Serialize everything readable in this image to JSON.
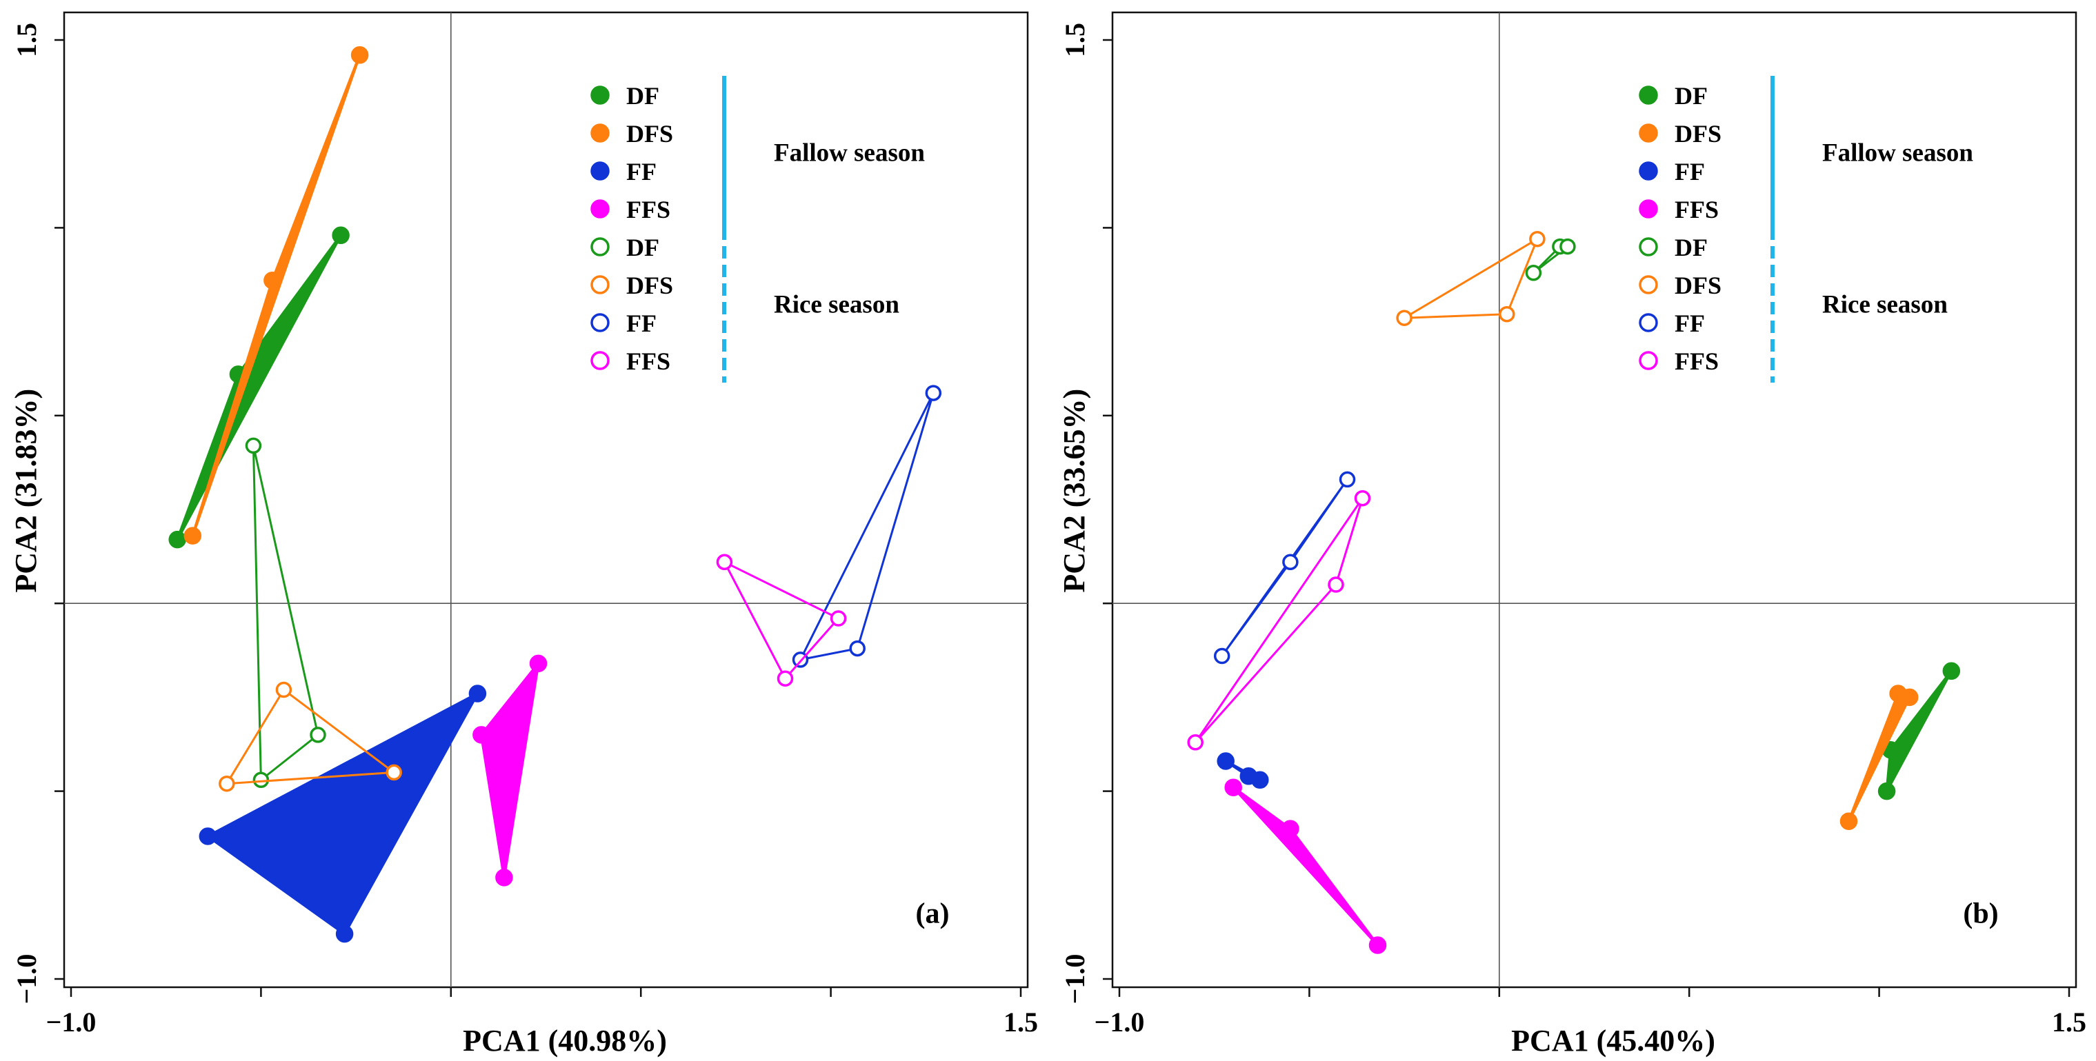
{
  "chart_data": [
    {
      "type": "scatter",
      "panel_label": "(a)",
      "xlabel": "PCA1 (40.98%)",
      "ylabel": "PCA2 (31.83%)",
      "xlim": [
        -1.0,
        1.5
      ],
      "ylim": [
        -1.0,
        1.5
      ],
      "x_tick_labels": [
        "-1.0",
        "1.5"
      ],
      "y_tick_labels": [
        "1.5",
        "-1.0"
      ],
      "reference_lines": {
        "x": 0,
        "y": 0
      },
      "legend": {
        "position": "top-right",
        "fallow_label": "Fallow season",
        "rice_label": "Rice season",
        "entries": [
          {
            "name": "DF",
            "season": "fallow",
            "color": "#1a9a1a"
          },
          {
            "name": "DFS",
            "season": "fallow",
            "color": "#ff7f0e"
          },
          {
            "name": "FF",
            "season": "fallow",
            "color": "#1034d6"
          },
          {
            "name": "FFS",
            "season": "fallow",
            "color": "#ff00ff"
          },
          {
            "name": "DF",
            "season": "rice",
            "color": "#1a9a1a"
          },
          {
            "name": "DFS",
            "season": "rice",
            "color": "#ff7f0e"
          },
          {
            "name": "FF",
            "season": "rice",
            "color": "#1034d6"
          },
          {
            "name": "FFS",
            "season": "rice",
            "color": "#ff00ff"
          }
        ]
      },
      "series": [
        {
          "name": "DF",
          "season": "fallow",
          "color": "#1a9a1a",
          "points": [
            [
              -0.72,
              0.17
            ],
            [
              -0.56,
              0.61
            ],
            [
              -0.29,
              0.98
            ]
          ]
        },
        {
          "name": "DFS",
          "season": "fallow",
          "color": "#ff7f0e",
          "points": [
            [
              -0.68,
              0.18
            ],
            [
              -0.47,
              0.86
            ],
            [
              -0.24,
              1.46
            ]
          ]
        },
        {
          "name": "FF",
          "season": "fallow",
          "color": "#1034d6",
          "points": [
            [
              -0.64,
              -0.62
            ],
            [
              -0.28,
              -0.88
            ],
            [
              0.07,
              -0.24
            ]
          ]
        },
        {
          "name": "FFS",
          "season": "fallow",
          "color": "#ff00ff",
          "points": [
            [
              0.08,
              -0.35
            ],
            [
              0.14,
              -0.73
            ],
            [
              0.23,
              -0.16
            ]
          ]
        },
        {
          "name": "DF",
          "season": "rice",
          "color": "#1a9a1a",
          "points": [
            [
              -0.52,
              0.42
            ],
            [
              -0.5,
              -0.47
            ],
            [
              -0.35,
              -0.35
            ]
          ]
        },
        {
          "name": "DFS",
          "season": "rice",
          "color": "#ff7f0e",
          "points": [
            [
              -0.59,
              -0.48
            ],
            [
              -0.44,
              -0.23
            ],
            [
              -0.15,
              -0.45
            ]
          ]
        },
        {
          "name": "FF",
          "season": "rice",
          "color": "#1034d6",
          "points": [
            [
              0.92,
              -0.15
            ],
            [
              1.07,
              -0.12
            ],
            [
              1.27,
              0.56
            ]
          ]
        },
        {
          "name": "FFS",
          "season": "rice",
          "color": "#ff00ff",
          "points": [
            [
              0.72,
              0.11
            ],
            [
              0.88,
              -0.2
            ],
            [
              1.02,
              -0.04
            ]
          ]
        }
      ]
    },
    {
      "type": "scatter",
      "panel_label": "(b)",
      "xlabel": "PCA1 (45.40%)",
      "ylabel": "PCA2 (33.65%)",
      "xlim": [
        -1.0,
        1.5
      ],
      "ylim": [
        -1.0,
        1.5
      ],
      "x_tick_labels": [
        "-1.0",
        "1.5"
      ],
      "y_tick_labels": [
        "1.5",
        "-1.0"
      ],
      "reference_lines": {
        "x": 0,
        "y": 0
      },
      "legend": {
        "position": "top-right",
        "fallow_label": "Fallow season",
        "rice_label": "Rice season",
        "entries": [
          {
            "name": "DF",
            "season": "fallow",
            "color": "#1a9a1a"
          },
          {
            "name": "DFS",
            "season": "fallow",
            "color": "#ff7f0e"
          },
          {
            "name": "FF",
            "season": "fallow",
            "color": "#1034d6"
          },
          {
            "name": "FFS",
            "season": "fallow",
            "color": "#ff00ff"
          },
          {
            "name": "DF",
            "season": "rice",
            "color": "#1a9a1a"
          },
          {
            "name": "DFS",
            "season": "rice",
            "color": "#ff7f0e"
          },
          {
            "name": "FF",
            "season": "rice",
            "color": "#1034d6"
          },
          {
            "name": "FFS",
            "season": "rice",
            "color": "#ff00ff"
          }
        ]
      },
      "series": [
        {
          "name": "DF",
          "season": "fallow",
          "color": "#1a9a1a",
          "points": [
            [
              1.02,
              -0.5
            ],
            [
              1.03,
              -0.39
            ],
            [
              1.19,
              -0.18
            ]
          ]
        },
        {
          "name": "DFS",
          "season": "fallow",
          "color": "#ff7f0e",
          "points": [
            [
              0.92,
              -0.58
            ],
            [
              1.05,
              -0.24
            ],
            [
              1.08,
              -0.25
            ]
          ]
        },
        {
          "name": "FF",
          "season": "fallow",
          "color": "#1034d6",
          "points": [
            [
              -0.72,
              -0.42
            ],
            [
              -0.66,
              -0.46
            ],
            [
              -0.63,
              -0.47
            ]
          ]
        },
        {
          "name": "FFS",
          "season": "fallow",
          "color": "#ff00ff",
          "points": [
            [
              -0.7,
              -0.49
            ],
            [
              -0.55,
              -0.6
            ],
            [
              -0.32,
              -0.91
            ]
          ]
        },
        {
          "name": "DF",
          "season": "rice",
          "color": "#1a9a1a",
          "points": [
            [
              0.09,
              0.88
            ],
            [
              0.16,
              0.95
            ],
            [
              0.18,
              0.95
            ]
          ]
        },
        {
          "name": "DFS",
          "season": "rice",
          "color": "#ff7f0e",
          "points": [
            [
              -0.25,
              0.76
            ],
            [
              0.02,
              0.77
            ],
            [
              0.1,
              0.97
            ]
          ]
        },
        {
          "name": "FF",
          "season": "rice",
          "color": "#1034d6",
          "points": [
            [
              -0.73,
              -0.14
            ],
            [
              -0.55,
              0.11
            ],
            [
              -0.4,
              0.33
            ]
          ]
        },
        {
          "name": "FFS",
          "season": "rice",
          "color": "#ff00ff",
          "points": [
            [
              -0.8,
              -0.37
            ],
            [
              -0.43,
              0.05
            ],
            [
              -0.36,
              0.28
            ]
          ]
        }
      ]
    }
  ]
}
